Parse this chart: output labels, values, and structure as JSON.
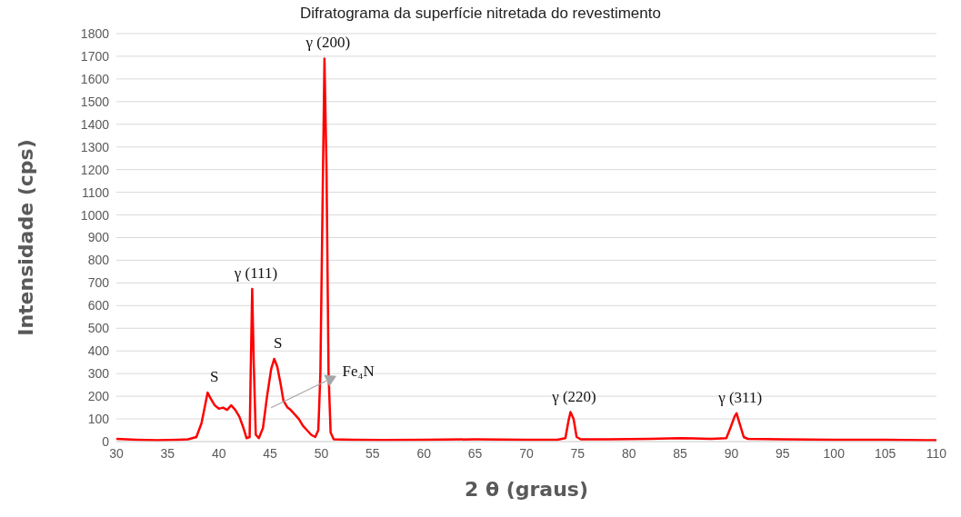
{
  "chart_data": {
    "type": "line",
    "title": "Difratograma da superfície nitretada do revestimento",
    "xlabel": "2 θ (graus)",
    "ylabel": "Intensidade (cps)",
    "x": [
      30,
      32,
      34,
      36,
      37,
      37.8,
      38.3,
      38.7,
      38.9,
      39.2,
      39.6,
      40,
      40.4,
      40.8,
      41.2,
      41.6,
      42,
      42.4,
      42.7,
      43,
      43.1,
      43.25,
      43.4,
      43.6,
      43.9,
      44.3,
      44.7,
      45.1,
      45.4,
      45.7,
      46,
      46.3,
      46.7,
      47,
      47.4,
      47.8,
      48.2,
      48.6,
      49,
      49.4,
      49.7,
      49.9,
      50.1,
      50.3,
      50.5,
      50.7,
      50.9,
      51.2,
      53,
      56,
      60,
      65,
      70,
      73,
      73.8,
      74.1,
      74.3,
      74.6,
      74.9,
      75.3,
      78,
      82,
      85,
      88,
      89.5,
      89.9,
      90.3,
      90.5,
      90.8,
      91.2,
      91.6,
      95,
      100,
      105,
      110
    ],
    "series": [
      {
        "color": "#ff0000",
        "values": [
          12,
          8,
          6,
          8,
          10,
          20,
          80,
          170,
          216,
          190,
          160,
          145,
          150,
          140,
          160,
          140,
          110,
          60,
          15,
          20,
          300,
          673,
          350,
          30,
          15,
          60,
          200,
          320,
          365,
          330,
          260,
          180,
          150,
          140,
          120,
          100,
          70,
          50,
          30,
          20,
          50,
          300,
          1000,
          1690,
          1200,
          300,
          40,
          10,
          8,
          7,
          8,
          10,
          8,
          8,
          15,
          90,
          130,
          100,
          20,
          10,
          10,
          12,
          15,
          12,
          15,
          60,
          110,
          125,
          80,
          20,
          12,
          10,
          8,
          8,
          6
        ]
      }
    ],
    "xlim": [
      30,
      110
    ],
    "xticks": [
      30,
      35,
      40,
      45,
      50,
      55,
      60,
      65,
      70,
      75,
      80,
      85,
      90,
      95,
      100,
      105,
      110
    ],
    "ylim": [
      0,
      1800
    ],
    "yticks": [
      0,
      100,
      200,
      300,
      400,
      500,
      600,
      700,
      800,
      900,
      1000,
      1100,
      1200,
      1300,
      1400,
      1500,
      1600,
      1700,
      1800
    ],
    "grid": "y",
    "legend": false,
    "marker": "none",
    "line_style": "solid",
    "annotations": [
      {
        "text": "S",
        "x": 39.2,
        "y": 216
      },
      {
        "text": "γ (111)",
        "x": 43.25,
        "y": 673
      },
      {
        "text": "S",
        "x": 45.4,
        "y": 365
      },
      "Fe₄N",
      {
        "text": "γ (200)",
        "x": 50.3,
        "y": 1690
      },
      {
        "text": "γ (220)",
        "x": 74.3,
        "y": 130
      },
      {
        "text": "γ (311)",
        "x": 90.5,
        "y": 125
      }
    ]
  }
}
